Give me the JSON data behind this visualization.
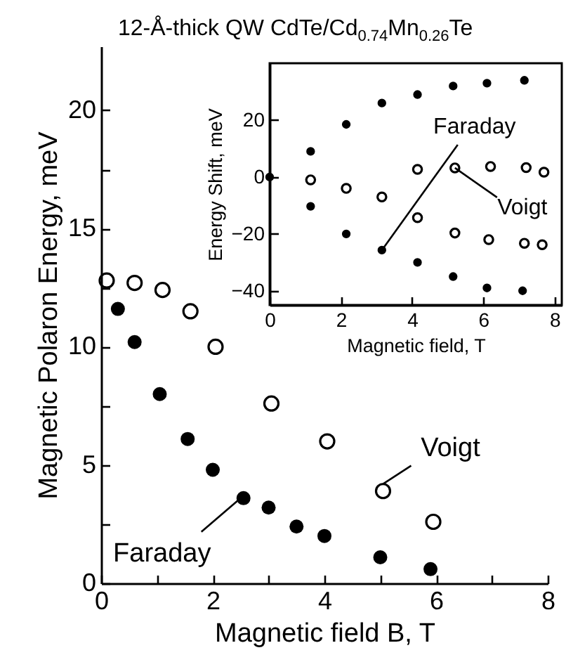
{
  "chart_data": [
    {
      "type": "scatter",
      "title": "12-Å-thick QW  CdTe/Cd$_{0.74}$Mn$_{0.26}$Te",
      "xlabel": "Magnetic field B, T",
      "ylabel": "Magnetic Polaron Energy, meV",
      "xlim": [
        0,
        8
      ],
      "ylim": [
        0,
        22.7
      ],
      "xticks": [
        0,
        {
          "value": 1,
          "label": null
        },
        2,
        {
          "value": 3,
          "label": null
        },
        4,
        {
          "value": 5,
          "label": null
        },
        6,
        {
          "value": 7,
          "label": null
        },
        8
      ],
      "yticks": [
        0,
        {
          "value": 2.5,
          "label": null
        },
        5,
        {
          "value": 7.5,
          "label": null
        },
        10,
        {
          "value": 12.5,
          "label": null
        },
        15,
        {
          "value": 17.5,
          "label": null
        },
        20
      ],
      "grid": false,
      "marker": "circle",
      "series": [
        {
          "color": "#000000",
          "x": [
            0.3,
            0.6,
            1.05,
            1.55,
            2.0,
            2.55,
            3.0,
            3.5,
            4.0,
            5.0,
            5.9
          ],
          "values": [
            11.6,
            10.2,
            8.0,
            6.1,
            4.8,
            3.6,
            3.2,
            2.4,
            2.0,
            1.1,
            0.6
          ]
        },
        {
          "color": "#000000",
          "x": [
            0.1,
            0.6,
            1.1,
            1.6,
            2.05,
            3.05,
            4.05,
            5.05,
            5.95
          ],
          "values": [
            12.8,
            12.7,
            12.4,
            11.5,
            10.0,
            7.6,
            6.0,
            3.9,
            2.6
          ]
        }
      ],
      "annotations": [
        {
          "text": "Faraday",
          "x": 2.5,
          "y": 3.6
        },
        {
          "text": "Voigt",
          "x": 5.05,
          "y": 4.2
        }
      ]
    },
    {
      "type": "scatter",
      "xlabel": "Magnetic field, T",
      "ylabel": "Energy Shift, meV",
      "xlim": [
        0,
        8.2
      ],
      "ylim": [
        -45,
        40
      ],
      "xticks": [
        0,
        2,
        4,
        6,
        8
      ],
      "yticks": [
        -40,
        -20,
        0,
        20
      ],
      "grid": false,
      "marker": "circle",
      "series": [
        {
          "color": "#000000",
          "x": [
            0,
            1.15,
            2.15,
            3.15,
            4.15,
            5.15,
            6.1,
            7.15,
            1.15,
            2.15,
            3.15,
            4.15,
            5.15,
            6.1,
            7.1
          ],
          "values": [
            0,
            9,
            18.5,
            26,
            29,
            32,
            33,
            34,
            -10.3,
            -20,
            -25.7,
            -30,
            -35,
            -39,
            -40
          ]
        },
        {
          "color": "#000000",
          "x": [
            1.15,
            2.15,
            3.15,
            4.15,
            5.2,
            6.2,
            7.2,
            7.7,
            4.15,
            5.2,
            6.15,
            7.15,
            7.65
          ],
          "values": [
            -1,
            -4,
            -7,
            2.7,
            3.2,
            3.7,
            3.3,
            1.7,
            -14.3,
            -19.7,
            -22,
            -23.3,
            -23.8
          ]
        }
      ],
      "annotations": [
        {
          "text": "Faraday",
          "x": 3.15,
          "y": -25.7
        },
        {
          "text": "Voigt",
          "x": 5.2,
          "y": 3.2
        }
      ]
    }
  ]
}
